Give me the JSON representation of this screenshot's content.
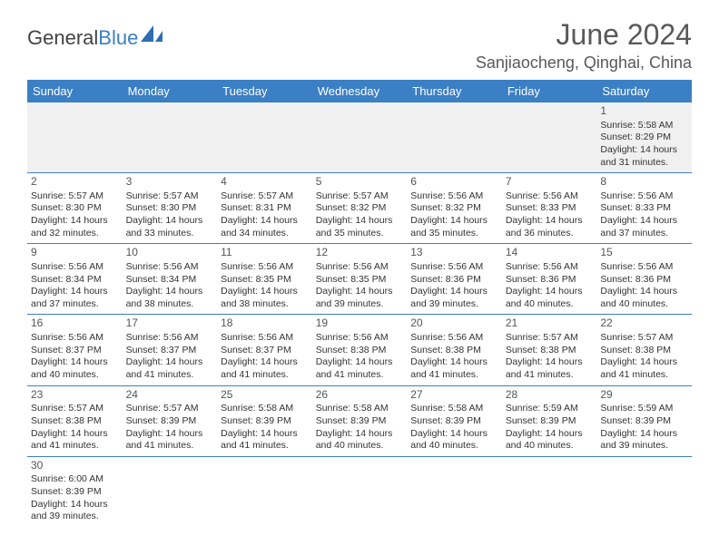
{
  "logo": {
    "part1": "General",
    "part2": "Blue",
    "shape_color": "#2d6db3"
  },
  "title": "June 2024",
  "location": "Sanjiaocheng, Qinghai, China",
  "colors": {
    "header_bg": "#3b7fc4",
    "header_text": "#ffffff",
    "border": "#3b7fc4",
    "firstweek_bg": "#f0f0f0",
    "title_color": "#595959"
  },
  "day_headers": [
    "Sunday",
    "Monday",
    "Tuesday",
    "Wednesday",
    "Thursday",
    "Friday",
    "Saturday"
  ],
  "weeks": [
    [
      null,
      null,
      null,
      null,
      null,
      null,
      {
        "n": "1",
        "sr": "Sunrise: 5:58 AM",
        "ss": "Sunset: 8:29 PM",
        "d1": "Daylight: 14 hours",
        "d2": "and 31 minutes."
      }
    ],
    [
      {
        "n": "2",
        "sr": "Sunrise: 5:57 AM",
        "ss": "Sunset: 8:30 PM",
        "d1": "Daylight: 14 hours",
        "d2": "and 32 minutes."
      },
      {
        "n": "3",
        "sr": "Sunrise: 5:57 AM",
        "ss": "Sunset: 8:30 PM",
        "d1": "Daylight: 14 hours",
        "d2": "and 33 minutes."
      },
      {
        "n": "4",
        "sr": "Sunrise: 5:57 AM",
        "ss": "Sunset: 8:31 PM",
        "d1": "Daylight: 14 hours",
        "d2": "and 34 minutes."
      },
      {
        "n": "5",
        "sr": "Sunrise: 5:57 AM",
        "ss": "Sunset: 8:32 PM",
        "d1": "Daylight: 14 hours",
        "d2": "and 35 minutes."
      },
      {
        "n": "6",
        "sr": "Sunrise: 5:56 AM",
        "ss": "Sunset: 8:32 PM",
        "d1": "Daylight: 14 hours",
        "d2": "and 35 minutes."
      },
      {
        "n": "7",
        "sr": "Sunrise: 5:56 AM",
        "ss": "Sunset: 8:33 PM",
        "d1": "Daylight: 14 hours",
        "d2": "and 36 minutes."
      },
      {
        "n": "8",
        "sr": "Sunrise: 5:56 AM",
        "ss": "Sunset: 8:33 PM",
        "d1": "Daylight: 14 hours",
        "d2": "and 37 minutes."
      }
    ],
    [
      {
        "n": "9",
        "sr": "Sunrise: 5:56 AM",
        "ss": "Sunset: 8:34 PM",
        "d1": "Daylight: 14 hours",
        "d2": "and 37 minutes."
      },
      {
        "n": "10",
        "sr": "Sunrise: 5:56 AM",
        "ss": "Sunset: 8:34 PM",
        "d1": "Daylight: 14 hours",
        "d2": "and 38 minutes."
      },
      {
        "n": "11",
        "sr": "Sunrise: 5:56 AM",
        "ss": "Sunset: 8:35 PM",
        "d1": "Daylight: 14 hours",
        "d2": "and 38 minutes."
      },
      {
        "n": "12",
        "sr": "Sunrise: 5:56 AM",
        "ss": "Sunset: 8:35 PM",
        "d1": "Daylight: 14 hours",
        "d2": "and 39 minutes."
      },
      {
        "n": "13",
        "sr": "Sunrise: 5:56 AM",
        "ss": "Sunset: 8:36 PM",
        "d1": "Daylight: 14 hours",
        "d2": "and 39 minutes."
      },
      {
        "n": "14",
        "sr": "Sunrise: 5:56 AM",
        "ss": "Sunset: 8:36 PM",
        "d1": "Daylight: 14 hours",
        "d2": "and 40 minutes."
      },
      {
        "n": "15",
        "sr": "Sunrise: 5:56 AM",
        "ss": "Sunset: 8:36 PM",
        "d1": "Daylight: 14 hours",
        "d2": "and 40 minutes."
      }
    ],
    [
      {
        "n": "16",
        "sr": "Sunrise: 5:56 AM",
        "ss": "Sunset: 8:37 PM",
        "d1": "Daylight: 14 hours",
        "d2": "and 40 minutes."
      },
      {
        "n": "17",
        "sr": "Sunrise: 5:56 AM",
        "ss": "Sunset: 8:37 PM",
        "d1": "Daylight: 14 hours",
        "d2": "and 41 minutes."
      },
      {
        "n": "18",
        "sr": "Sunrise: 5:56 AM",
        "ss": "Sunset: 8:37 PM",
        "d1": "Daylight: 14 hours",
        "d2": "and 41 minutes."
      },
      {
        "n": "19",
        "sr": "Sunrise: 5:56 AM",
        "ss": "Sunset: 8:38 PM",
        "d1": "Daylight: 14 hours",
        "d2": "and 41 minutes."
      },
      {
        "n": "20",
        "sr": "Sunrise: 5:56 AM",
        "ss": "Sunset: 8:38 PM",
        "d1": "Daylight: 14 hours",
        "d2": "and 41 minutes."
      },
      {
        "n": "21",
        "sr": "Sunrise: 5:57 AM",
        "ss": "Sunset: 8:38 PM",
        "d1": "Daylight: 14 hours",
        "d2": "and 41 minutes."
      },
      {
        "n": "22",
        "sr": "Sunrise: 5:57 AM",
        "ss": "Sunset: 8:38 PM",
        "d1": "Daylight: 14 hours",
        "d2": "and 41 minutes."
      }
    ],
    [
      {
        "n": "23",
        "sr": "Sunrise: 5:57 AM",
        "ss": "Sunset: 8:38 PM",
        "d1": "Daylight: 14 hours",
        "d2": "and 41 minutes."
      },
      {
        "n": "24",
        "sr": "Sunrise: 5:57 AM",
        "ss": "Sunset: 8:39 PM",
        "d1": "Daylight: 14 hours",
        "d2": "and 41 minutes."
      },
      {
        "n": "25",
        "sr": "Sunrise: 5:58 AM",
        "ss": "Sunset: 8:39 PM",
        "d1": "Daylight: 14 hours",
        "d2": "and 41 minutes."
      },
      {
        "n": "26",
        "sr": "Sunrise: 5:58 AM",
        "ss": "Sunset: 8:39 PM",
        "d1": "Daylight: 14 hours",
        "d2": "and 40 minutes."
      },
      {
        "n": "27",
        "sr": "Sunrise: 5:58 AM",
        "ss": "Sunset: 8:39 PM",
        "d1": "Daylight: 14 hours",
        "d2": "and 40 minutes."
      },
      {
        "n": "28",
        "sr": "Sunrise: 5:59 AM",
        "ss": "Sunset: 8:39 PM",
        "d1": "Daylight: 14 hours",
        "d2": "and 40 minutes."
      },
      {
        "n": "29",
        "sr": "Sunrise: 5:59 AM",
        "ss": "Sunset: 8:39 PM",
        "d1": "Daylight: 14 hours",
        "d2": "and 39 minutes."
      }
    ],
    [
      {
        "n": "30",
        "sr": "Sunrise: 6:00 AM",
        "ss": "Sunset: 8:39 PM",
        "d1": "Daylight: 14 hours",
        "d2": "and 39 minutes."
      },
      null,
      null,
      null,
      null,
      null,
      null
    ]
  ]
}
